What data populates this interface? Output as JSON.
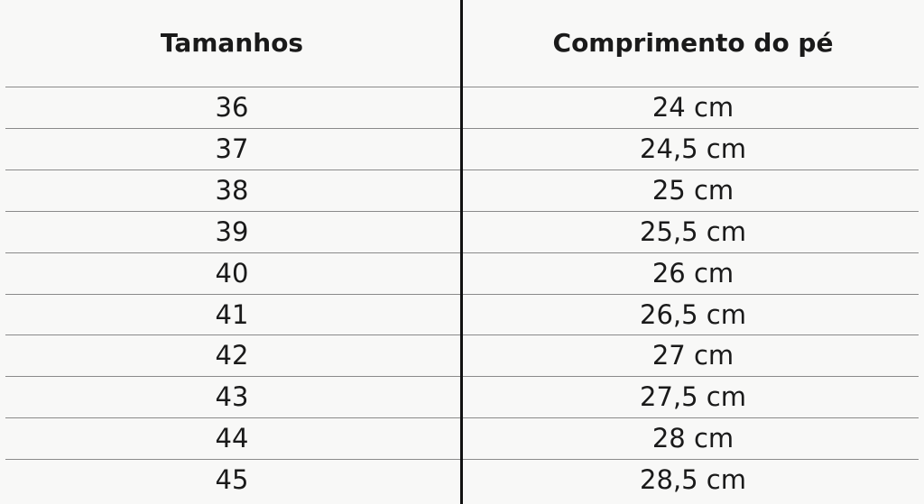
{
  "table": {
    "header": [
      "Tamanhos",
      "Comprimento do pé"
    ],
    "rows": [
      [
        "36",
        "24 cm"
      ],
      [
        "37",
        "24,5 cm"
      ],
      [
        "38",
        "25 cm"
      ],
      [
        "39",
        "25,5 cm"
      ],
      [
        "40",
        "26 cm"
      ],
      [
        "41",
        "26,5 cm"
      ],
      [
        "42",
        "27 cm"
      ],
      [
        "43",
        "27,5 cm"
      ],
      [
        "44",
        "28 cm"
      ],
      [
        "45",
        "28,5 cm"
      ]
    ]
  }
}
